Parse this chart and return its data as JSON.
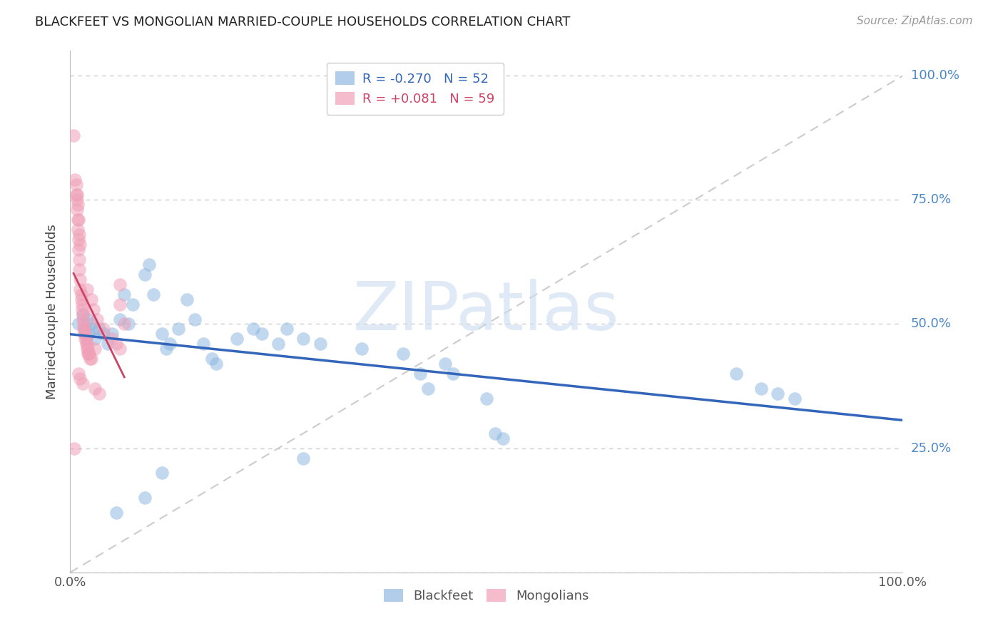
{
  "title": "BLACKFEET VS MONGOLIAN MARRIED-COUPLE HOUSEHOLDS CORRELATION CHART",
  "source": "Source: ZipAtlas.com",
  "ylabel": "Married-couple Households",
  "legend_entries": [
    {
      "color": "#90b8e0",
      "label": "Blackfeet",
      "R": -0.27,
      "N": 52
    },
    {
      "color": "#f0a0b8",
      "label": "Mongolians",
      "R": 0.081,
      "N": 59
    }
  ],
  "blue_color": "#90b8e0",
  "pink_color": "#f0a0b8",
  "blue_line_color": "#3366bb",
  "pink_line_color": "#cc4466",
  "blue_scatter": [
    [
      0.01,
      0.5
    ],
    [
      0.015,
      0.52
    ],
    [
      0.018,
      0.49
    ],
    [
      0.02,
      0.51
    ],
    [
      0.022,
      0.48
    ],
    [
      0.025,
      0.5
    ],
    [
      0.028,
      0.49
    ],
    [
      0.03,
      0.47
    ],
    [
      0.035,
      0.49
    ],
    [
      0.04,
      0.48
    ],
    [
      0.045,
      0.46
    ],
    [
      0.05,
      0.48
    ],
    [
      0.06,
      0.51
    ],
    [
      0.065,
      0.56
    ],
    [
      0.07,
      0.5
    ],
    [
      0.075,
      0.54
    ],
    [
      0.09,
      0.6
    ],
    [
      0.095,
      0.62
    ],
    [
      0.1,
      0.56
    ],
    [
      0.11,
      0.48
    ],
    [
      0.115,
      0.45
    ],
    [
      0.12,
      0.46
    ],
    [
      0.13,
      0.49
    ],
    [
      0.14,
      0.55
    ],
    [
      0.15,
      0.51
    ],
    [
      0.16,
      0.46
    ],
    [
      0.17,
      0.43
    ],
    [
      0.175,
      0.42
    ],
    [
      0.2,
      0.47
    ],
    [
      0.22,
      0.49
    ],
    [
      0.23,
      0.48
    ],
    [
      0.25,
      0.46
    ],
    [
      0.26,
      0.49
    ],
    [
      0.28,
      0.47
    ],
    [
      0.3,
      0.46
    ],
    [
      0.35,
      0.45
    ],
    [
      0.4,
      0.44
    ],
    [
      0.42,
      0.4
    ],
    [
      0.43,
      0.37
    ],
    [
      0.45,
      0.42
    ],
    [
      0.46,
      0.4
    ],
    [
      0.5,
      0.35
    ],
    [
      0.51,
      0.28
    ],
    [
      0.52,
      0.27
    ],
    [
      0.055,
      0.12
    ],
    [
      0.09,
      0.15
    ],
    [
      0.11,
      0.2
    ],
    [
      0.28,
      0.23
    ],
    [
      0.8,
      0.4
    ],
    [
      0.83,
      0.37
    ],
    [
      0.85,
      0.36
    ],
    [
      0.87,
      0.35
    ]
  ],
  "pink_scatter": [
    [
      0.004,
      0.88
    ],
    [
      0.006,
      0.79
    ],
    [
      0.007,
      0.78
    ],
    [
      0.007,
      0.76
    ],
    [
      0.008,
      0.75
    ],
    [
      0.008,
      0.73
    ],
    [
      0.009,
      0.71
    ],
    [
      0.009,
      0.69
    ],
    [
      0.01,
      0.67
    ],
    [
      0.01,
      0.65
    ],
    [
      0.011,
      0.63
    ],
    [
      0.011,
      0.61
    ],
    [
      0.012,
      0.59
    ],
    [
      0.012,
      0.57
    ],
    [
      0.013,
      0.56
    ],
    [
      0.013,
      0.55
    ],
    [
      0.014,
      0.54
    ],
    [
      0.014,
      0.53
    ],
    [
      0.015,
      0.52
    ],
    [
      0.015,
      0.51
    ],
    [
      0.016,
      0.5
    ],
    [
      0.016,
      0.49
    ],
    [
      0.017,
      0.49
    ],
    [
      0.017,
      0.48
    ],
    [
      0.018,
      0.48
    ],
    [
      0.018,
      0.47
    ],
    [
      0.019,
      0.47
    ],
    [
      0.019,
      0.46
    ],
    [
      0.02,
      0.46
    ],
    [
      0.02,
      0.45
    ],
    [
      0.021,
      0.45
    ],
    [
      0.021,
      0.44
    ],
    [
      0.022,
      0.44
    ],
    [
      0.023,
      0.44
    ],
    [
      0.024,
      0.43
    ],
    [
      0.025,
      0.43
    ],
    [
      0.01,
      0.4
    ],
    [
      0.012,
      0.39
    ],
    [
      0.015,
      0.38
    ],
    [
      0.03,
      0.37
    ],
    [
      0.035,
      0.36
    ],
    [
      0.06,
      0.58
    ],
    [
      0.06,
      0.54
    ],
    [
      0.065,
      0.5
    ],
    [
      0.005,
      0.25
    ],
    [
      0.03,
      0.45
    ],
    [
      0.008,
      0.76
    ],
    [
      0.009,
      0.74
    ],
    [
      0.01,
      0.71
    ],
    [
      0.011,
      0.68
    ],
    [
      0.012,
      0.66
    ],
    [
      0.02,
      0.57
    ],
    [
      0.025,
      0.55
    ],
    [
      0.028,
      0.53
    ],
    [
      0.032,
      0.51
    ],
    [
      0.04,
      0.49
    ],
    [
      0.05,
      0.47
    ],
    [
      0.055,
      0.46
    ],
    [
      0.06,
      0.45
    ]
  ],
  "xlim": [
    0.0,
    1.0
  ],
  "ylim": [
    0.0,
    1.05
  ],
  "yticks": [
    0.0,
    0.25,
    0.5,
    0.75,
    1.0
  ],
  "ytick_labels_right": [
    "",
    "25.0%",
    "50.0%",
    "75.0%",
    "100.0%"
  ],
  "xtick_labels": [
    "0.0%",
    "100.0%"
  ],
  "grid_color": "#cccccc",
  "ref_line_color": "#cccccc",
  "watermark": "ZIPatlas",
  "watermark_zip_color": "#c8d8ee",
  "watermark_atlas_color": "#b0c8e8"
}
